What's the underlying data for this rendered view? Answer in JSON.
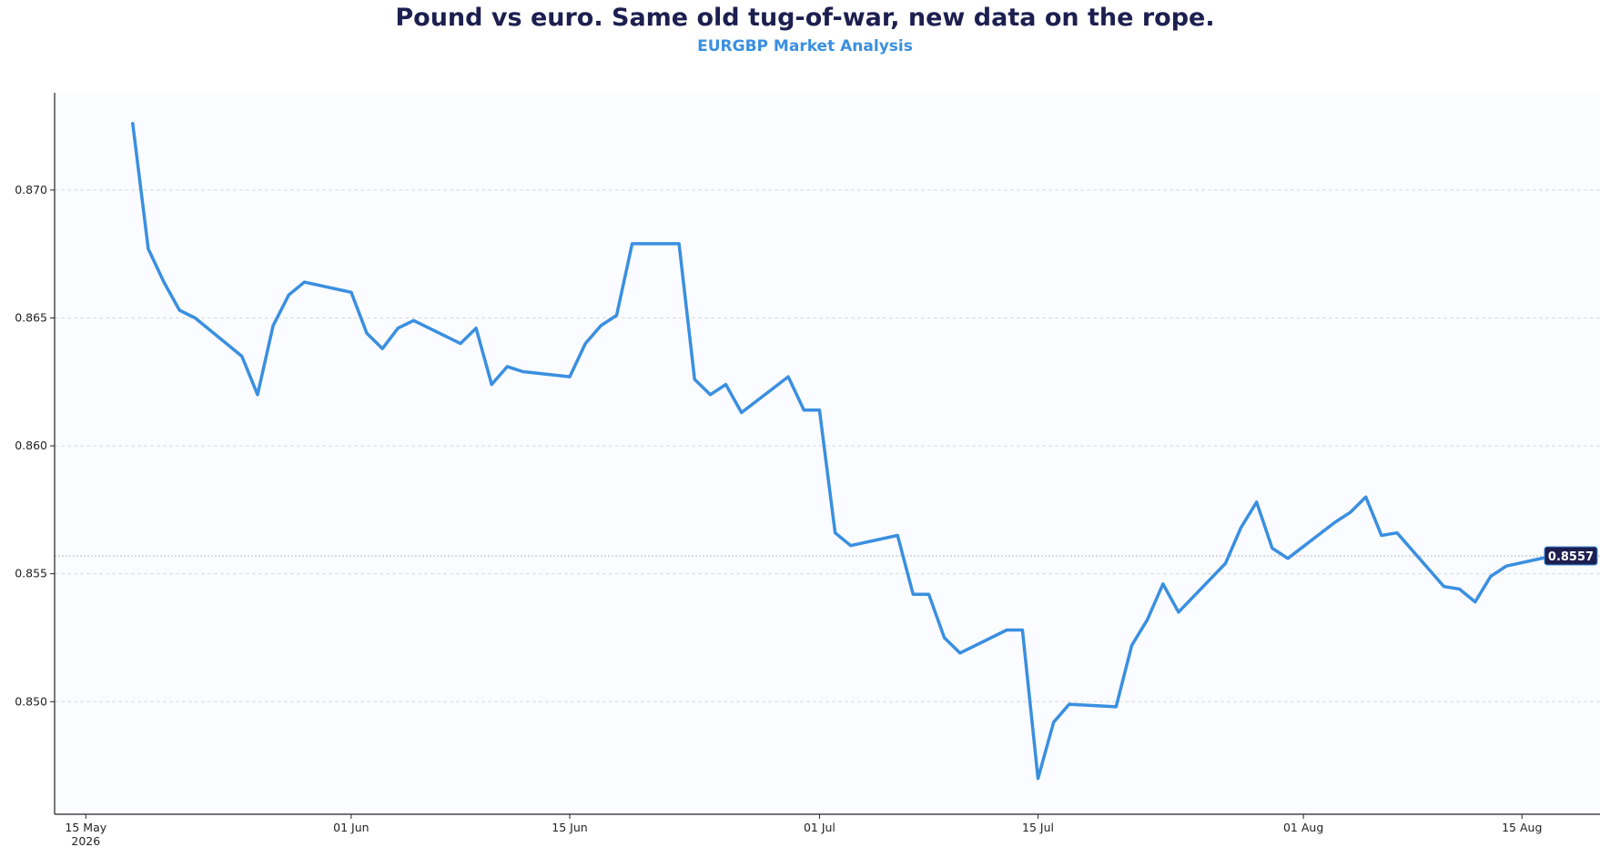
{
  "title": "Pound vs euro. Same old tug-of-war, new data on the rope.",
  "subtitle": "EURGBP Market Analysis",
  "colors": {
    "line": "#3a8fe0",
    "title": "#1c1f4f",
    "subtitle": "#3a8fe0",
    "badge_bg": "#1c1f4f",
    "badge_border": "#3a8fe0",
    "grid": "#d9d9d9",
    "plot_bg": "#fafcff"
  },
  "chart_data": {
    "type": "line",
    "title": "Pound vs euro. Same old tug-of-war, new data on the rope.",
    "subtitle": "EURGBP Market Analysis",
    "xlabel": "",
    "ylabel": "",
    "xlim": [
      "2026-05-13",
      "2026-08-20"
    ],
    "ylim": [
      0.8456,
      0.8738
    ],
    "grid": "horizontal dashed",
    "y_ticks": [
      0.85,
      0.855,
      0.86,
      0.865,
      0.87
    ],
    "y_tick_labels": [
      "0.850",
      "0.855",
      "0.860",
      "0.865",
      "0.870"
    ],
    "x_ticks": [
      "2026-05-15",
      "2026-06-01",
      "2026-06-15",
      "2026-07-01",
      "2026-07-15",
      "2026-08-01",
      "2026-08-15"
    ],
    "x_tick_labels": [
      [
        "15 May",
        "2026"
      ],
      [
        "01 Jun"
      ],
      [
        "15 Jun"
      ],
      [
        "01 Jul"
      ],
      [
        "15 Jul"
      ],
      [
        "01 Aug"
      ],
      [
        "15 Aug"
      ]
    ],
    "last_value_label": "0.8557",
    "last_value": 0.8557,
    "series": [
      {
        "x": [
          "2026-05-18",
          "2026-05-19",
          "2026-05-20",
          "2026-05-21",
          "2026-05-22",
          "2026-05-25",
          "2026-05-26",
          "2026-05-27",
          "2026-05-28",
          "2026-05-29",
          "2026-06-01",
          "2026-06-02",
          "2026-06-03",
          "2026-06-04",
          "2026-06-05",
          "2026-06-08",
          "2026-06-09",
          "2026-06-10",
          "2026-06-11",
          "2026-06-12",
          "2026-06-15",
          "2026-06-16",
          "2026-06-17",
          "2026-06-18",
          "2026-06-19",
          "2026-06-22",
          "2026-06-23",
          "2026-06-24",
          "2026-06-25",
          "2026-06-26",
          "2026-06-29",
          "2026-06-30",
          "2026-07-01",
          "2026-07-02",
          "2026-07-03",
          "2026-07-06",
          "2026-07-07",
          "2026-07-08",
          "2026-07-09",
          "2026-07-10",
          "2026-07-13",
          "2026-07-14",
          "2026-07-15",
          "2026-07-16",
          "2026-07-17",
          "2026-07-20",
          "2026-07-21",
          "2026-07-22",
          "2026-07-23",
          "2026-07-24",
          "2026-07-27",
          "2026-07-28",
          "2026-07-29",
          "2026-07-30",
          "2026-07-31",
          "2026-08-03",
          "2026-08-04",
          "2026-08-05",
          "2026-08-06",
          "2026-08-07",
          "2026-08-10",
          "2026-08-11",
          "2026-08-12",
          "2026-08-13",
          "2026-08-14",
          "2026-08-17"
        ],
        "values": [
          0.8726,
          0.8677,
          0.8664,
          0.8653,
          0.865,
          0.8635,
          0.862,
          0.8647,
          0.8659,
          0.8664,
          0.866,
          0.8644,
          0.8638,
          0.8646,
          0.8649,
          0.864,
          0.8646,
          0.8624,
          0.8631,
          0.8629,
          0.8627,
          0.864,
          0.8647,
          0.8651,
          0.8679,
          0.8679,
          0.8626,
          0.862,
          0.8624,
          0.8613,
          0.8627,
          0.8614,
          0.8614,
          0.8566,
          0.8561,
          0.8565,
          0.8542,
          0.8542,
          0.8525,
          0.8519,
          0.8528,
          0.8528,
          0.847,
          0.8492,
          0.8499,
          0.8498,
          0.8522,
          0.8532,
          0.8546,
          0.8535,
          0.8554,
          0.8568,
          0.8578,
          0.856,
          0.8556,
          0.857,
          0.8574,
          0.858,
          0.8565,
          0.8566,
          0.8545,
          0.8544,
          0.8539,
          0.8549,
          0.8553,
          0.8557
        ]
      }
    ]
  }
}
